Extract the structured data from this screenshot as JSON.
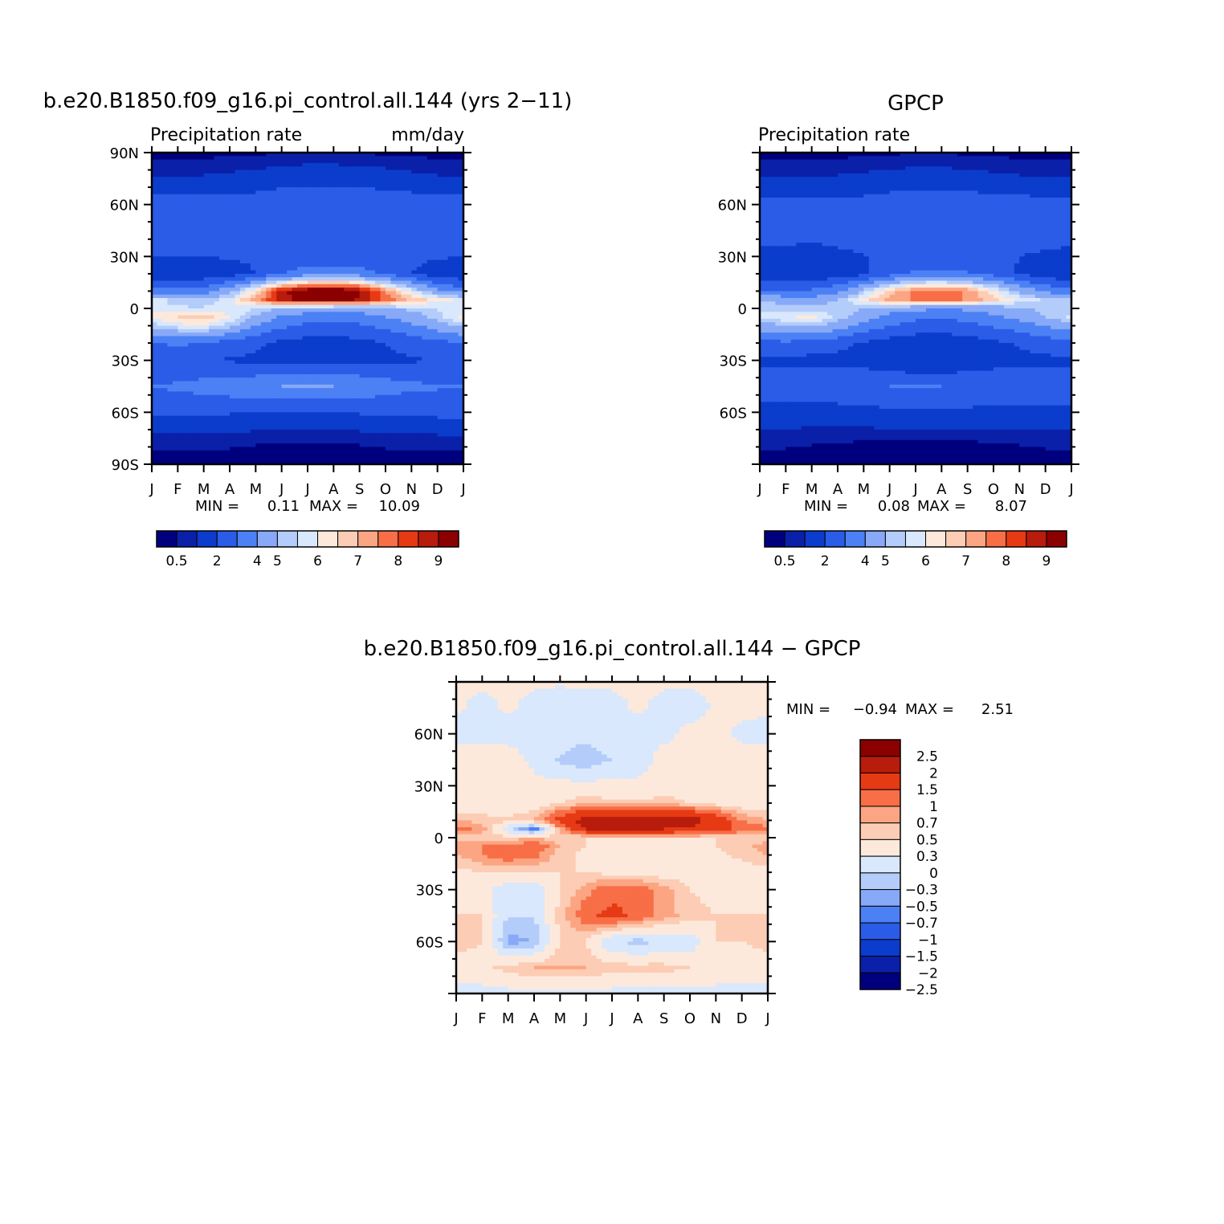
{
  "colors": {
    "precip_levels": [
      "#00007f",
      "#0a20a8",
      "#0b3ccc",
      "#2a5ce8",
      "#4c80f5",
      "#87a9f7",
      "#b3ccfa",
      "#d9e8fc",
      "#fde9dc",
      "#fcccb4",
      "#fca582",
      "#f76e47",
      "#e63a14",
      "#b71c0c",
      "#8b0000"
    ],
    "diff_levels": [
      "#00007f",
      "#0a20a8",
      "#0b3ccc",
      "#2a5ce8",
      "#4c80f5",
      "#87a9f7",
      "#b3ccfa",
      "#d9e8fc",
      "#fde9dc",
      "#fcccb4",
      "#fca582",
      "#f76e47",
      "#e63a14",
      "#b71c0c",
      "#8b0000"
    ]
  },
  "chart_data": [
    {
      "type": "heatmap",
      "title": "b.e20.B1850.f09_g16.pi_control.all.144 (yrs 2−11)",
      "subtitle_left": "Precipitation rate",
      "subtitle_right": "mm/day",
      "x_ticks": [
        "J",
        "F",
        "M",
        "A",
        "M",
        "J",
        "J",
        "A",
        "S",
        "O",
        "N",
        "D",
        "J"
      ],
      "y_ticks": [
        "90N",
        "60N",
        "30N",
        "0",
        "30S",
        "60S",
        "90S"
      ],
      "min_label": "MIN =",
      "min_value": "0.11",
      "max_label": "MAX =",
      "max_value": "10.09",
      "colorbar_labels": [
        "0.5",
        "2",
        "4",
        "5",
        "6",
        "7",
        "8",
        "9"
      ],
      "colorbar_levels": [
        0.5,
        1,
        2,
        3,
        4,
        5,
        5.5,
        6,
        6.5,
        7,
        7.5,
        8,
        8.5,
        9
      ],
      "field": {
        "lat": [
          90,
          75,
          60,
          45,
          30,
          20,
          10,
          5,
          0,
          -5,
          -10,
          -20,
          -30,
          -45,
          -60,
          -75,
          -90
        ],
        "months": [
          "J",
          "F",
          "M",
          "A",
          "M",
          "J",
          "J",
          "A",
          "S",
          "O",
          "N",
          "D",
          "J"
        ],
        "rows": [
          [
            0.3,
            0.3,
            0.3,
            0.4,
            0.4,
            0.5,
            0.5,
            0.5,
            0.5,
            0.4,
            0.4,
            0.3,
            0.3
          ],
          [
            1.0,
            1.0,
            1.1,
            1.2,
            1.3,
            1.5,
            1.6,
            1.6,
            1.5,
            1.4,
            1.2,
            1.1,
            1.0
          ],
          [
            2.5,
            2.6,
            2.5,
            2.6,
            2.6,
            2.8,
            2.9,
            2.9,
            2.9,
            2.8,
            2.7,
            2.6,
            2.5
          ],
          [
            2.8,
            2.7,
            2.5,
            2.4,
            2.3,
            2.3,
            2.3,
            2.4,
            2.5,
            2.7,
            2.8,
            2.9,
            2.8
          ],
          [
            2.0,
            2.0,
            2.0,
            2.1,
            2.1,
            2.2,
            2.3,
            2.4,
            2.4,
            2.3,
            2.2,
            2.1,
            2.0
          ],
          [
            1.2,
            1.2,
            1.3,
            1.6,
            2.0,
            3.0,
            3.5,
            3.6,
            3.4,
            2.8,
            2.0,
            1.5,
            1.2
          ],
          [
            3.5,
            3.4,
            3.6,
            4.6,
            6.5,
            8.8,
            9.6,
            9.8,
            9.2,
            7.5,
            5.8,
            4.2,
            3.5
          ],
          [
            5.8,
            5.2,
            5.0,
            5.8,
            7.2,
            8.8,
            9.3,
            9.5,
            8.9,
            7.8,
            6.8,
            6.2,
            5.8
          ],
          [
            5.8,
            5.6,
            5.6,
            5.8,
            5.5,
            5.0,
            4.7,
            4.5,
            4.6,
            4.9,
            5.2,
            5.5,
            5.8
          ],
          [
            6.2,
            6.5,
            6.8,
            6.0,
            4.8,
            3.8,
            3.4,
            3.3,
            3.5,
            4.0,
            4.5,
            5.3,
            6.2
          ],
          [
            5.2,
            5.8,
            6.0,
            5.2,
            4.0,
            3.2,
            2.8,
            2.7,
            2.9,
            3.3,
            3.8,
            4.5,
            5.2
          ],
          [
            3.0,
            3.2,
            3.0,
            2.6,
            2.2,
            1.8,
            1.6,
            1.6,
            1.7,
            2.0,
            2.4,
            2.7,
            3.0
          ],
          [
            2.0,
            2.0,
            2.0,
            1.9,
            1.8,
            1.8,
            1.8,
            1.8,
            1.8,
            1.8,
            1.9,
            2.0,
            2.0
          ],
          [
            3.0,
            3.2,
            3.4,
            3.6,
            3.8,
            4.0,
            4.1,
            4.0,
            3.8,
            3.5,
            3.2,
            3.1,
            3.0
          ],
          [
            2.3,
            2.2,
            2.1,
            2.1,
            2.0,
            2.0,
            2.0,
            2.0,
            2.1,
            2.1,
            2.2,
            2.3,
            2.3
          ],
          [
            0.8,
            0.8,
            0.7,
            0.7,
            0.6,
            0.6,
            0.6,
            0.6,
            0.6,
            0.7,
            0.7,
            0.8,
            0.8
          ],
          [
            0.2,
            0.2,
            0.2,
            0.2,
            0.2,
            0.2,
            0.2,
            0.2,
            0.2,
            0.2,
            0.2,
            0.2,
            0.2
          ]
        ]
      }
    },
    {
      "type": "heatmap",
      "title": "GPCP",
      "subtitle_left": "Precipitation rate",
      "x_ticks": [
        "J",
        "F",
        "M",
        "A",
        "M",
        "J",
        "J",
        "A",
        "S",
        "O",
        "N",
        "D",
        "J"
      ],
      "y_ticks": [
        "60N",
        "30N",
        "0",
        "30S",
        "60S"
      ],
      "min_label": "MIN =",
      "min_value": "0.08",
      "max_label": "MAX =",
      "max_value": "8.07",
      "colorbar_labels": [
        "0.5",
        "2",
        "4",
        "5",
        "6",
        "7",
        "8",
        "9"
      ],
      "colorbar_levels": [
        0.5,
        1,
        2,
        3,
        4,
        5,
        5.5,
        6,
        6.5,
        7,
        7.5,
        8,
        8.5,
        9
      ],
      "field": {
        "lat": [
          90,
          75,
          60,
          45,
          30,
          20,
          10,
          5,
          0,
          -5,
          -10,
          -20,
          -30,
          -45,
          -60,
          -75,
          -90
        ],
        "months": [
          "J",
          "F",
          "M",
          "A",
          "M",
          "J",
          "J",
          "A",
          "S",
          "O",
          "N",
          "D",
          "J"
        ],
        "rows": [
          [
            0.3,
            0.3,
            0.3,
            0.3,
            0.4,
            0.4,
            0.5,
            0.5,
            0.4,
            0.4,
            0.3,
            0.3,
            0.3
          ],
          [
            1.0,
            1.0,
            1.0,
            1.1,
            1.2,
            1.3,
            1.4,
            1.4,
            1.3,
            1.2,
            1.1,
            1.0,
            1.0
          ],
          [
            2.3,
            2.3,
            2.3,
            2.4,
            2.4,
            2.6,
            2.7,
            2.7,
            2.7,
            2.6,
            2.5,
            2.4,
            2.3
          ],
          [
            2.6,
            2.5,
            2.3,
            2.2,
            2.1,
            2.1,
            2.1,
            2.2,
            2.4,
            2.6,
            2.7,
            2.7,
            2.6
          ],
          [
            1.6,
            1.6,
            1.7,
            1.9,
            2.0,
            2.1,
            2.2,
            2.3,
            2.3,
            2.2,
            2.0,
            1.8,
            1.6
          ],
          [
            1.2,
            1.1,
            1.2,
            1.4,
            1.8,
            2.6,
            3.2,
            3.3,
            3.1,
            2.6,
            1.9,
            1.4,
            1.2
          ],
          [
            3.2,
            3.0,
            3.2,
            3.8,
            5.2,
            6.8,
            7.6,
            7.9,
            7.4,
            6.2,
            4.8,
            3.8,
            3.2
          ],
          [
            5.0,
            4.6,
            4.4,
            5.0,
            6.2,
            7.2,
            7.6,
            7.8,
            7.4,
            6.6,
            5.8,
            5.4,
            5.0
          ],
          [
            5.4,
            5.2,
            5.2,
            5.3,
            5.0,
            4.6,
            4.3,
            4.1,
            4.2,
            4.5,
            4.9,
            5.2,
            5.4
          ],
          [
            5.6,
            5.9,
            6.1,
            5.4,
            4.4,
            3.6,
            3.2,
            3.1,
            3.3,
            3.8,
            4.3,
            5.0,
            5.6
          ],
          [
            4.6,
            5.0,
            5.2,
            4.6,
            3.6,
            3.0,
            2.6,
            2.5,
            2.7,
            3.1,
            3.5,
            4.1,
            4.6
          ],
          [
            2.7,
            2.8,
            2.6,
            2.3,
            1.9,
            1.6,
            1.4,
            1.4,
            1.5,
            1.8,
            2.1,
            2.4,
            2.7
          ],
          [
            1.8,
            1.8,
            1.7,
            1.7,
            1.6,
            1.3,
            1.0,
            1.0,
            1.3,
            1.6,
            1.7,
            1.8,
            1.8
          ],
          [
            2.6,
            2.7,
            2.8,
            2.8,
            2.9,
            3.0,
            3.0,
            3.0,
            2.9,
            2.8,
            2.7,
            2.7,
            2.6
          ],
          [
            1.7,
            1.6,
            1.5,
            1.6,
            1.7,
            1.8,
            1.8,
            1.8,
            1.8,
            1.7,
            1.7,
            1.7,
            1.7
          ],
          [
            0.7,
            0.7,
            0.6,
            0.6,
            0.5,
            0.5,
            0.5,
            0.5,
            0.5,
            0.6,
            0.6,
            0.7,
            0.7
          ],
          [
            0.2,
            0.2,
            0.2,
            0.2,
            0.2,
            0.2,
            0.2,
            0.2,
            0.2,
            0.2,
            0.2,
            0.2,
            0.2
          ]
        ]
      }
    },
    {
      "type": "heatmap",
      "title": "b.e20.B1850.f09_g16.pi_control.all.144 − GPCP",
      "x_ticks": [
        "J",
        "F",
        "M",
        "A",
        "M",
        "J",
        "J",
        "A",
        "S",
        "O",
        "N",
        "D",
        "J"
      ],
      "y_ticks": [
        "60N",
        "30N",
        "0",
        "30S",
        "60S"
      ],
      "min_label": "MIN =",
      "min_value": "−0.94",
      "max_label": "MAX =",
      "max_value": "2.51",
      "colorbar_labels": [
        "2.5",
        "2",
        "1.5",
        "1",
        "0.7",
        "0.5",
        "0.3",
        "0",
        "−0.3",
        "−0.5",
        "−0.7",
        "−1",
        "−1.5",
        "−2",
        "−2.5"
      ],
      "colorbar_levels": [
        -2.5,
        -2,
        -1.5,
        -1,
        -0.7,
        -0.5,
        -0.3,
        0,
        0.3,
        0.5,
        0.7,
        1,
        1.5,
        2,
        2.5
      ],
      "field": {
        "lat": [
          90,
          75,
          60,
          45,
          30,
          20,
          10,
          5,
          0,
          -5,
          -10,
          -20,
          -30,
          -45,
          -60,
          -75,
          -90
        ],
        "months": [
          "J",
          "F",
          "M",
          "A",
          "M",
          "J",
          "J",
          "A",
          "S",
          "O",
          "N",
          "D",
          "J"
        ],
        "rows": [
          [
            0.05,
            0.05,
            0.05,
            0.05,
            0.02,
            0.05,
            0.05,
            0.05,
            0.05,
            0.05,
            0.05,
            0.05,
            0.05
          ],
          [
            0.05,
            -0.1,
            0.05,
            -0.1,
            -0.1,
            -0.15,
            -0.1,
            0.05,
            -0.1,
            -0.15,
            0.05,
            0.1,
            0.05
          ],
          [
            -0.1,
            -0.1,
            -0.15,
            -0.15,
            -0.1,
            -0.2,
            -0.1,
            -0.1,
            -0.1,
            0.1,
            0.15,
            -0.1,
            -0.1
          ],
          [
            0.15,
            0.2,
            0.2,
            -0.1,
            -0.35,
            -0.5,
            -0.3,
            -0.2,
            0.15,
            0.1,
            0.1,
            0.2,
            0.15
          ],
          [
            0.2,
            0.2,
            0.15,
            0.1,
            0.1,
            0.1,
            0.1,
            0.1,
            0.15,
            0.2,
            0.2,
            0.2,
            0.2
          ],
          [
            0.1,
            0.1,
            0.1,
            0.15,
            0.3,
            0.45,
            0.35,
            0.35,
            0.4,
            0.3,
            0.2,
            0.1,
            0.1
          ],
          [
            0.5,
            0.4,
            0.35,
            0.5,
            1.2,
            1.8,
            2.0,
            1.9,
            1.9,
            1.8,
            1.3,
            0.7,
            0.5
          ],
          [
            0.8,
            0.6,
            -0.2,
            -0.9,
            0.6,
            1.5,
            1.7,
            1.6,
            1.5,
            1.4,
            1.1,
            0.9,
            0.8
          ],
          [
            0.4,
            0.4,
            0.35,
            0.5,
            0.3,
            0.3,
            0.3,
            0.3,
            0.3,
            0.3,
            0.3,
            0.35,
            0.4
          ],
          [
            0.6,
            0.7,
            0.8,
            0.9,
            0.5,
            0.3,
            0.2,
            0.15,
            0.2,
            0.25,
            0.3,
            0.4,
            0.6
          ],
          [
            0.5,
            0.7,
            0.9,
            0.8,
            0.4,
            0.2,
            0.15,
            0.15,
            0.15,
            0.2,
            0.25,
            0.35,
            0.5
          ],
          [
            0.2,
            0.3,
            0.3,
            0.25,
            0.3,
            0.3,
            0.2,
            0.2,
            0.15,
            0.15,
            0.2,
            0.2,
            0.2
          ],
          [
            0.15,
            0.1,
            -0.2,
            -0.2,
            0.3,
            0.6,
            0.9,
            0.9,
            0.6,
            0.3,
            0.2,
            0.15,
            0.15
          ],
          [
            0.3,
            0.3,
            -0.3,
            -0.3,
            0.4,
            0.9,
            1.1,
            0.9,
            0.6,
            0.4,
            0.3,
            0.3,
            0.3
          ],
          [
            0.4,
            0.3,
            -0.6,
            -0.5,
            0.3,
            0.3,
            -0.3,
            -0.4,
            -0.3,
            -0.2,
            0.3,
            0.3,
            0.4
          ],
          [
            0.15,
            0.2,
            0.4,
            0.5,
            0.5,
            0.5,
            0.4,
            0.4,
            0.4,
            0.3,
            0.2,
            0.15,
            0.15
          ],
          [
            -0.1,
            -0.1,
            -0.1,
            -0.1,
            -0.1,
            -0.1,
            -0.1,
            -0.1,
            -0.1,
            -0.1,
            -0.1,
            -0.1,
            -0.1
          ]
        ]
      }
    }
  ]
}
